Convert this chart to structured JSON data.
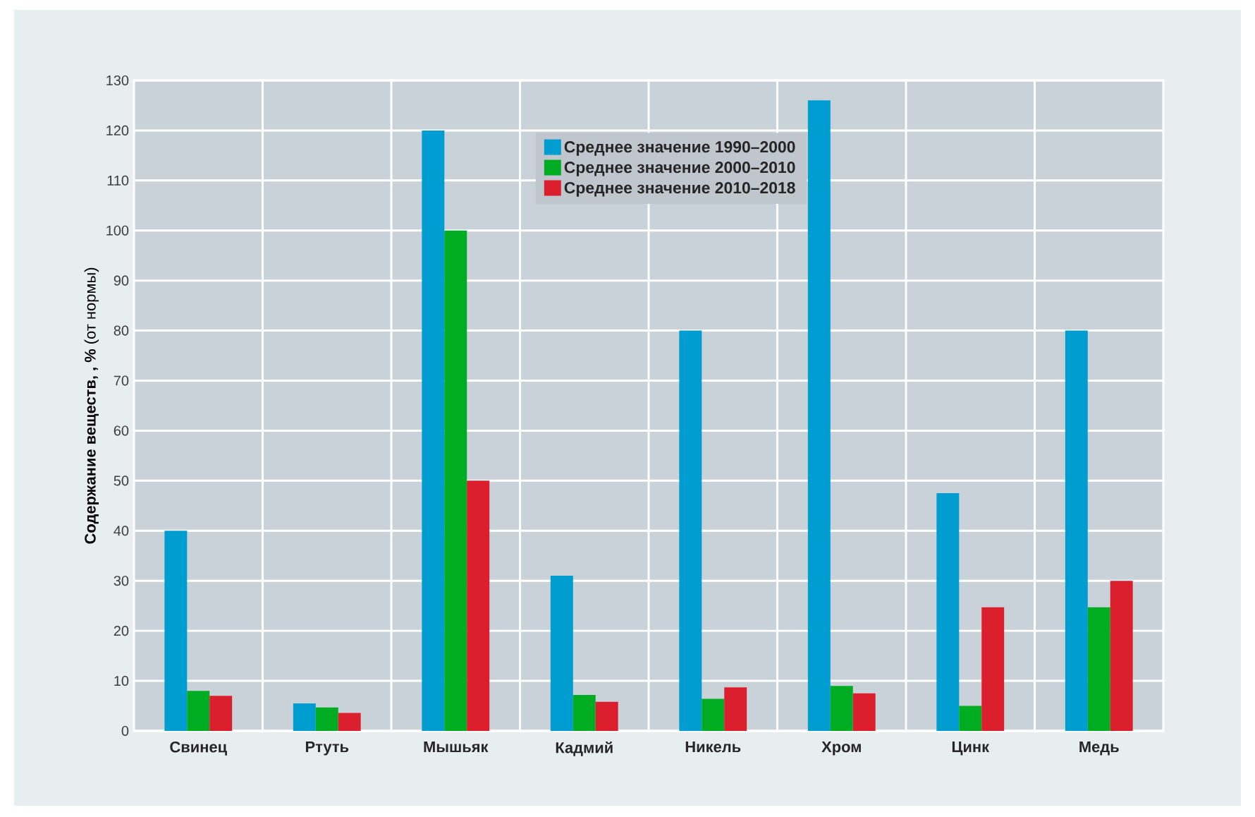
{
  "chart_data": {
    "type": "bar",
    "ylabel": "**Содержание веществ, , %** (от нормы)",
    "categories": [
      "Свинец",
      "Ртуть",
      "Мышьяк",
      "Кадмий",
      "Никель",
      "Хром",
      "Цинк",
      "Медь"
    ],
    "series": [
      {
        "name": "Среднее значение 1990–2000",
        "color": "#009dd0",
        "values": [
          40,
          5.5,
          120,
          31,
          80,
          126,
          47.5,
          80
        ]
      },
      {
        "name": "Среднее значение 2000–2010",
        "color": "#00ac22",
        "values": [
          8,
          4.7,
          100,
          7.2,
          6.4,
          9,
          5,
          24.7
        ]
      },
      {
        "name": "Среднее значение 2010–2018",
        "color": "#dc1f2c",
        "values": [
          7,
          3.6,
          50,
          5.8,
          8.7,
          7.5,
          24.7,
          30
        ]
      }
    ],
    "ylim": [
      0,
      130
    ],
    "yticks": [
      0,
      10,
      20,
      30,
      40,
      50,
      60,
      70,
      80,
      90,
      100,
      110,
      120,
      130
    ],
    "grid": true,
    "legend": "top"
  }
}
